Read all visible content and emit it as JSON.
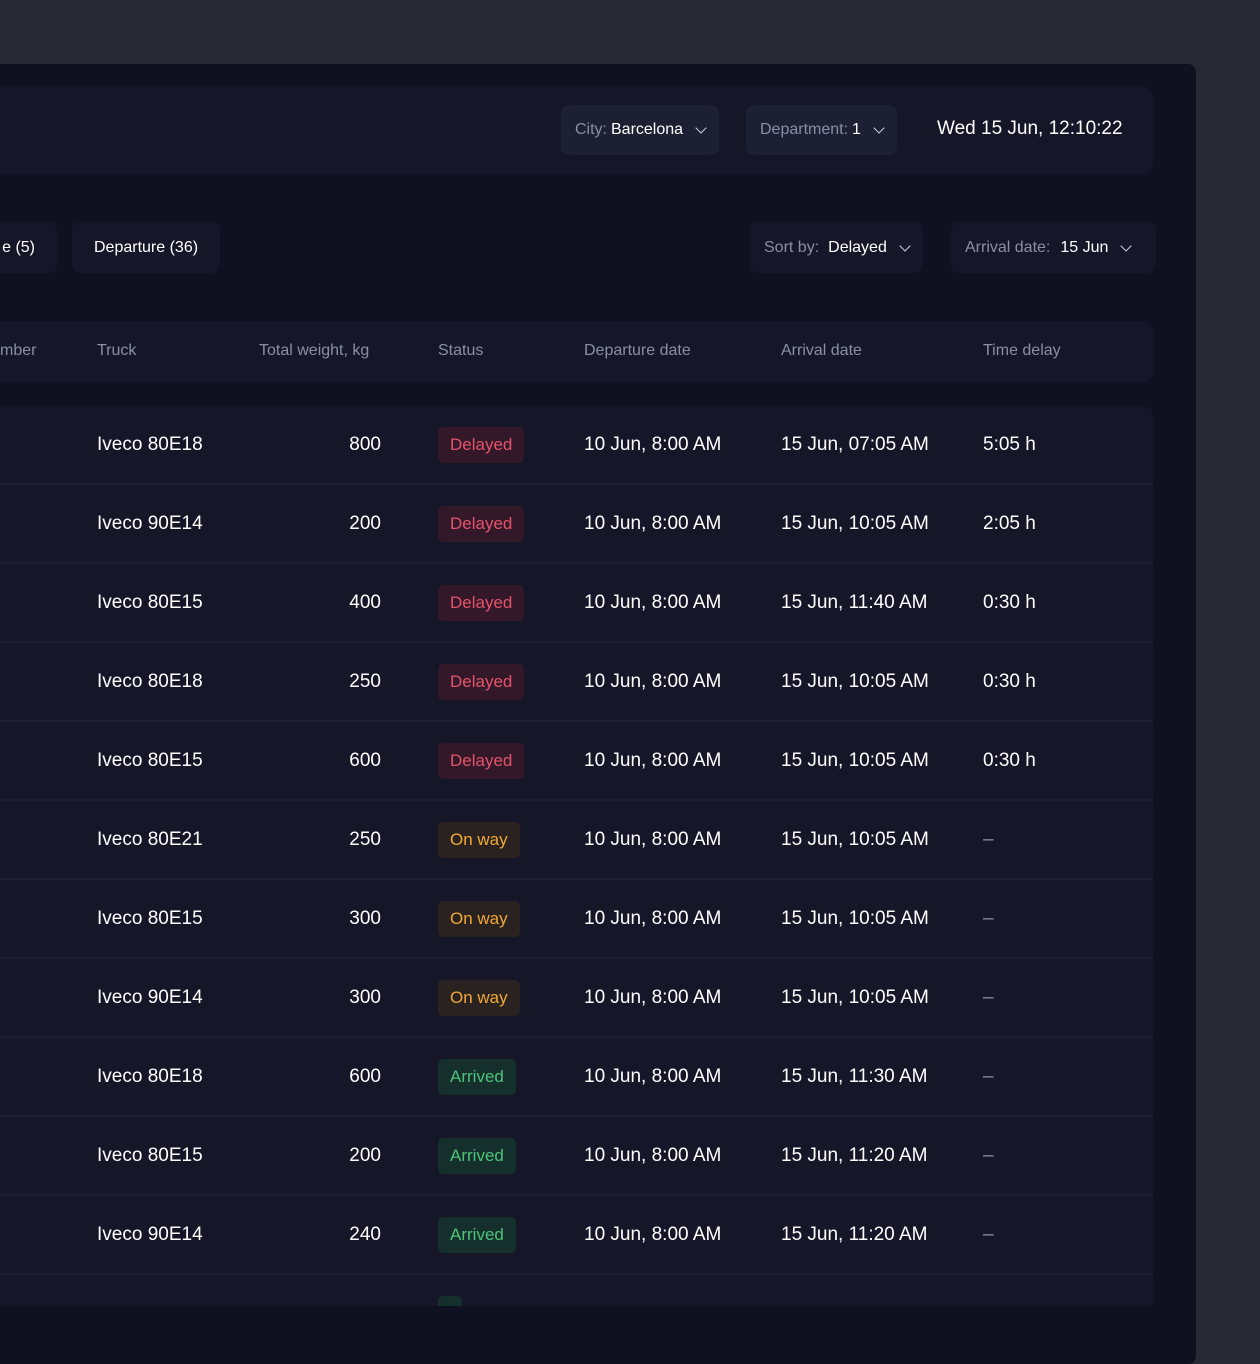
{
  "header": {
    "city": {
      "label": "City:",
      "value": "Barcelona"
    },
    "department": {
      "label": "Department:",
      "value": "1"
    },
    "datetime": "Wed 15 Jun, 12:10:22"
  },
  "tabs": [
    {
      "label": "e (5)"
    },
    {
      "label": "Departure (36)"
    }
  ],
  "sort": {
    "label": "Sort by:",
    "value": "Delayed"
  },
  "arrival_filter": {
    "label": "Arrival date:",
    "value": "15 Jun"
  },
  "columns": [
    "mber",
    "Truck",
    "Total weight, kg",
    "Status",
    "Departure date",
    "Arrival date",
    "Time delay"
  ],
  "status_colors": {
    "Delayed": {
      "text": "#e5536a",
      "bg": "#33182a"
    },
    "On way": {
      "text": "#f2a935",
      "bg": "#2a2220"
    },
    "Arrived": {
      "text": "#4fc27a",
      "bg": "#15302c"
    }
  },
  "rows": [
    {
      "truck": "Iveco 80E18",
      "weight": "800",
      "status": "Delayed",
      "departure": "10 Jun, 8:00 AM",
      "arrival": "15 Jun, 07:05 AM",
      "delay": "5:05 h"
    },
    {
      "truck": "Iveco 90E14",
      "weight": "200",
      "status": "Delayed",
      "departure": "10 Jun, 8:00 AM",
      "arrival": "15 Jun, 10:05 AM",
      "delay": "2:05 h"
    },
    {
      "truck": "Iveco 80E15",
      "weight": "400",
      "status": "Delayed",
      "departure": "10 Jun, 8:00 AM",
      "arrival": "15 Jun, 11:40 AM",
      "delay": "0:30 h"
    },
    {
      "truck": "Iveco 80E18",
      "weight": "250",
      "status": "Delayed",
      "departure": "10 Jun, 8:00 AM",
      "arrival": "15 Jun, 10:05 AM",
      "delay": "0:30 h"
    },
    {
      "truck": "Iveco 80E15",
      "weight": "600",
      "status": "Delayed",
      "departure": "10 Jun, 8:00 AM",
      "arrival": "15 Jun, 10:05 AM",
      "delay": "0:30 h"
    },
    {
      "truck": "Iveco 80E21",
      "weight": "250",
      "status": "On way",
      "departure": "10 Jun, 8:00 AM",
      "arrival": "15 Jun, 10:05 AM",
      "delay": "–"
    },
    {
      "truck": "Iveco 80E15",
      "weight": "300",
      "status": "On way",
      "departure": "10 Jun, 8:00 AM",
      "arrival": "15 Jun, 10:05 AM",
      "delay": "–"
    },
    {
      "truck": "Iveco 90E14",
      "weight": "300",
      "status": "On way",
      "departure": "10 Jun, 8:00 AM",
      "arrival": "15 Jun, 10:05 AM",
      "delay": "–"
    },
    {
      "truck": "Iveco 80E18",
      "weight": "600",
      "status": "Arrived",
      "departure": "10 Jun, 8:00 AM",
      "arrival": "15 Jun, 11:30 AM",
      "delay": "–"
    },
    {
      "truck": "Iveco 80E15",
      "weight": "200",
      "status": "Arrived",
      "departure": "10 Jun, 8:00 AM",
      "arrival": "15 Jun, 11:20 AM",
      "delay": "–"
    },
    {
      "truck": "Iveco 90E14",
      "weight": "240",
      "status": "Arrived",
      "departure": "10 Jun, 8:00 AM",
      "arrival": "15 Jun, 11:20 AM",
      "delay": "–"
    }
  ]
}
